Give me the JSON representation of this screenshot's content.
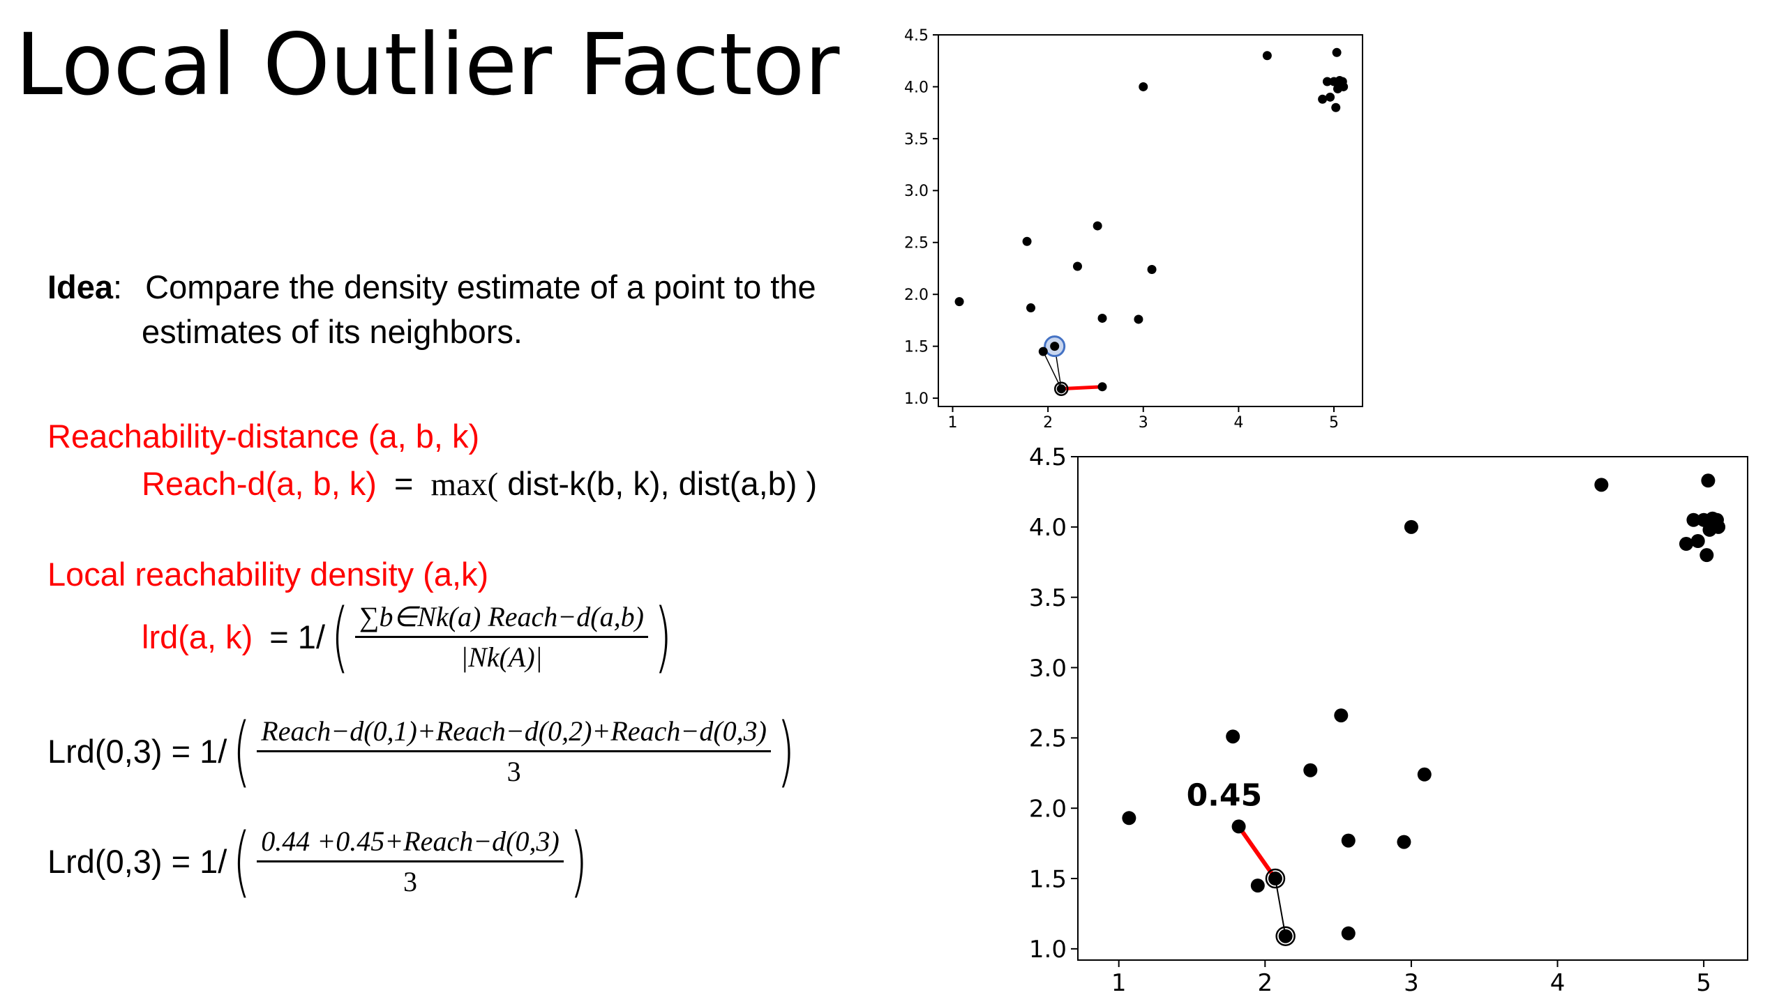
{
  "slide": {
    "title": "Local Outlier Factor",
    "idea_label": "Idea",
    "idea_colon": ":",
    "idea_line1": "Compare the density estimate of a point to the",
    "idea_line2": "estimates of its neighbors.",
    "reach_heading": "Reachability-distance (a, b, k)",
    "reach_def_lhs": "Reach-d(a, b, k)",
    "reach_def_eq": "=",
    "reach_def_max": "max(",
    "reach_def_rhs": "dist-k(b, k), dist(a,b) )",
    "lrd_heading": "Local reachability density (a,k)",
    "lrd_lhs": "lrd(a, k)",
    "lrd_eq": "= 1/",
    "lrd_num": "∑b∈Nk(a) Reach−d(a,b)",
    "lrd_den": "|Nk(A)|",
    "lrd1_lhs": "Lrd(0,3) = 1/",
    "lrd1_num": "Reach−d(0,1)+Reach−d(0,2)+Reach−d(0,3)",
    "lrd1_den": "3",
    "lrd2_lhs": "Lrd(0,3) = 1/",
    "lrd2_num": "0.44 +0.45+Reach−d(0,3)",
    "lrd2_den": "3"
  },
  "colors": {
    "accent": "#ff0000",
    "text": "#000000",
    "highlight": "#4472c4"
  },
  "chart_data": [
    {
      "type": "scatter",
      "x_ticks": [
        "1",
        "2",
        "3",
        "4",
        "5"
      ],
      "y_ticks": [
        "1.0",
        "1.5",
        "2.0",
        "2.5",
        "3.0",
        "3.5",
        "4.0",
        "4.5"
      ],
      "xlim": [
        0.85,
        5.3
      ],
      "ylim": [
        0.92,
        4.5
      ],
      "points": [
        [
          1.07,
          1.93
        ],
        [
          1.78,
          2.51
        ],
        [
          1.82,
          1.87
        ],
        [
          1.95,
          1.45
        ],
        [
          2.07,
          1.5
        ],
        [
          2.14,
          1.09
        ],
        [
          2.31,
          2.27
        ],
        [
          2.52,
          2.66
        ],
        [
          2.57,
          1.77
        ],
        [
          2.57,
          1.11
        ],
        [
          2.95,
          1.76
        ],
        [
          3.0,
          4.0
        ],
        [
          3.09,
          2.24
        ],
        [
          4.3,
          4.3
        ],
        [
          4.88,
          3.88
        ],
        [
          4.93,
          4.05
        ],
        [
          4.96,
          3.9
        ],
        [
          5.0,
          4.05
        ],
        [
          5.02,
          3.8
        ],
        [
          5.03,
          4.33
        ],
        [
          5.04,
          3.98
        ],
        [
          5.06,
          4.06
        ],
        [
          5.09,
          4.05
        ],
        [
          5.1,
          4.0
        ]
      ],
      "highlight_point": [
        2.07,
        1.5
      ],
      "circled_point": [
        2.14,
        1.09
      ],
      "neighbor_lines": [
        [
          [
            2.07,
            1.5
          ],
          [
            1.95,
            1.45
          ]
        ],
        [
          [
            1.95,
            1.45
          ],
          [
            2.14,
            1.09
          ]
        ],
        [
          [
            2.07,
            1.5
          ],
          [
            2.14,
            1.09
          ]
        ]
      ],
      "red_segment": [
        [
          2.14,
          1.09
        ],
        [
          2.57,
          1.11
        ]
      ]
    },
    {
      "type": "scatter",
      "x_ticks": [
        "1",
        "2",
        "3",
        "4",
        "5"
      ],
      "y_ticks": [
        "1.0",
        "1.5",
        "2.0",
        "2.5",
        "3.0",
        "3.5",
        "4.0",
        "4.5"
      ],
      "xlim": [
        0.72,
        5.3
      ],
      "ylim": [
        0.92,
        4.5
      ],
      "points": [
        [
          1.07,
          1.93
        ],
        [
          1.78,
          2.51
        ],
        [
          1.82,
          1.87
        ],
        [
          1.95,
          1.45
        ],
        [
          2.07,
          1.5
        ],
        [
          2.14,
          1.09
        ],
        [
          2.31,
          2.27
        ],
        [
          2.52,
          2.66
        ],
        [
          2.57,
          1.77
        ],
        [
          2.57,
          1.11
        ],
        [
          2.95,
          1.76
        ],
        [
          3.0,
          4.0
        ],
        [
          3.09,
          2.24
        ],
        [
          4.3,
          4.3
        ],
        [
          4.88,
          3.88
        ],
        [
          4.93,
          4.05
        ],
        [
          4.96,
          3.9
        ],
        [
          5.0,
          4.05
        ],
        [
          5.02,
          3.8
        ],
        [
          5.03,
          4.33
        ],
        [
          5.04,
          3.98
        ],
        [
          5.06,
          4.06
        ],
        [
          5.09,
          4.05
        ],
        [
          5.1,
          4.0
        ]
      ],
      "circled_points": [
        [
          2.07,
          1.5
        ],
        [
          2.14,
          1.09
        ]
      ],
      "neighbor_lines": [
        [
          [
            2.07,
            1.5
          ],
          [
            2.14,
            1.09
          ]
        ]
      ],
      "red_segment": [
        [
          1.82,
          1.87
        ],
        [
          2.07,
          1.5
        ]
      ],
      "annotation": "0.45"
    }
  ]
}
